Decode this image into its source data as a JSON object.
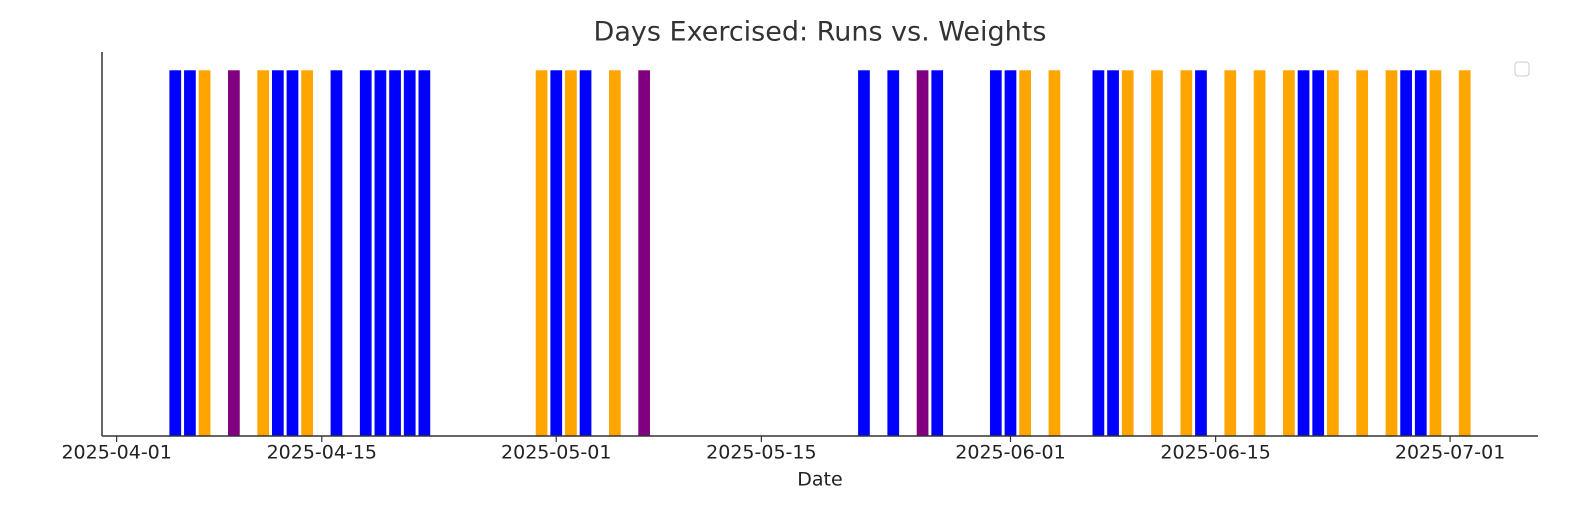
{
  "chart_data": {
    "type": "bar",
    "title": "Days Exercised: Runs vs. Weights",
    "x_label": "Date",
    "x": [
      "2025-04-05",
      "2025-04-06",
      "2025-04-07",
      "2025-04-09",
      "2025-04-11",
      "2025-04-12",
      "2025-04-13",
      "2025-04-14",
      "2025-04-16",
      "2025-04-18",
      "2025-04-19",
      "2025-04-20",
      "2025-04-21",
      "2025-04-22",
      "2025-04-30",
      "2025-05-01",
      "2025-05-02",
      "2025-05-03",
      "2025-05-05",
      "2025-05-07",
      "2025-05-22",
      "2025-05-24",
      "2025-05-26",
      "2025-05-27",
      "2025-05-31",
      "2025-06-01",
      "2025-06-02",
      "2025-06-04",
      "2025-06-07",
      "2025-06-08",
      "2025-06-09",
      "2025-06-11",
      "2025-06-13",
      "2025-06-14",
      "2025-06-16",
      "2025-06-18",
      "2025-06-20",
      "2025-06-21",
      "2025-06-22",
      "2025-06-23",
      "2025-06-25",
      "2025-06-27",
      "2025-06-28",
      "2025-06-29",
      "2025-06-30",
      "2025-07-02"
    ],
    "values": [
      1,
      1,
      1,
      1,
      1,
      1,
      1,
      1,
      1,
      1,
      1,
      1,
      1,
      1,
      1,
      1,
      1,
      1,
      1,
      1,
      1,
      1,
      1,
      1,
      1,
      1,
      1,
      1,
      1,
      1,
      1,
      1,
      1,
      1,
      1,
      1,
      1,
      1,
      1,
      1,
      1,
      1,
      1,
      1,
      1,
      1
    ],
    "colors": [
      "blue",
      "blue",
      "orange",
      "purple",
      "orange",
      "blue",
      "blue",
      "orange",
      "blue",
      "blue",
      "blue",
      "blue",
      "blue",
      "blue",
      "orange",
      "blue",
      "orange",
      "blue",
      "orange",
      "purple",
      "blue",
      "blue",
      "purple",
      "blue",
      "blue",
      "blue",
      "orange",
      "orange",
      "blue",
      "blue",
      "orange",
      "orange",
      "orange",
      "blue",
      "orange",
      "orange",
      "orange",
      "blue",
      "blue",
      "orange",
      "orange",
      "orange",
      "blue",
      "blue",
      "orange",
      "orange"
    ],
    "xlim": [
      "2025-03-31",
      "2025-07-07"
    ],
    "ylim": [
      0,
      1.05
    ],
    "xticks": [
      "2025-04-01",
      "2025-04-15",
      "2025-05-01",
      "2025-05-15",
      "2025-06-01",
      "2025-06-15",
      "2025-07-01"
    ]
  }
}
